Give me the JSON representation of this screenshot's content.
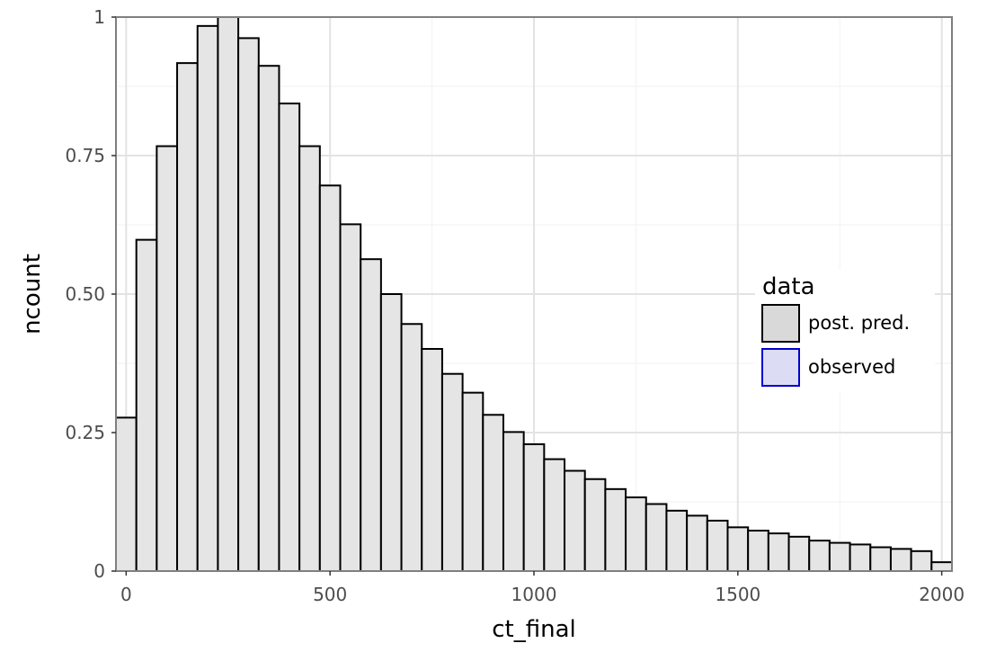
{
  "chart_data": {
    "type": "bar",
    "xlabel": "ct_final",
    "ylabel": "ncount",
    "xlim": [
      -25,
      2025
    ],
    "ylim": [
      0,
      1.0
    ],
    "x_ticks": [
      0,
      500,
      1000,
      1500,
      2000
    ],
    "x_tick_labels": [
      "0",
      "500",
      "1000",
      "1500",
      "2000"
    ],
    "y_ticks": [
      0,
      0.25,
      0.5,
      0.75,
      1
    ],
    "y_tick_labels": [
      "0",
      "0.25",
      "0.50",
      "0.75",
      "1"
    ],
    "grid": true,
    "bin_width": 50,
    "bins": [
      {
        "x0": -25,
        "x1": 25,
        "value": 0.277
      },
      {
        "x0": 25,
        "x1": 75,
        "value": 0.598
      },
      {
        "x0": 75,
        "x1": 125,
        "value": 0.767
      },
      {
        "x0": 125,
        "x1": 175,
        "value": 0.917
      },
      {
        "x0": 175,
        "x1": 225,
        "value": 0.984
      },
      {
        "x0": 225,
        "x1": 275,
        "value": 1.0
      },
      {
        "x0": 275,
        "x1": 325,
        "value": 0.962
      },
      {
        "x0": 325,
        "x1": 375,
        "value": 0.912
      },
      {
        "x0": 375,
        "x1": 425,
        "value": 0.844
      },
      {
        "x0": 425,
        "x1": 475,
        "value": 0.767
      },
      {
        "x0": 475,
        "x1": 525,
        "value": 0.696
      },
      {
        "x0": 525,
        "x1": 575,
        "value": 0.626
      },
      {
        "x0": 575,
        "x1": 625,
        "value": 0.563
      },
      {
        "x0": 625,
        "x1": 675,
        "value": 0.5
      },
      {
        "x0": 675,
        "x1": 725,
        "value": 0.446
      },
      {
        "x0": 725,
        "x1": 775,
        "value": 0.401
      },
      {
        "x0": 775,
        "x1": 825,
        "value": 0.356
      },
      {
        "x0": 825,
        "x1": 875,
        "value": 0.322
      },
      {
        "x0": 875,
        "x1": 925,
        "value": 0.282
      },
      {
        "x0": 925,
        "x1": 975,
        "value": 0.251
      },
      {
        "x0": 975,
        "x1": 1025,
        "value": 0.229
      },
      {
        "x0": 1025,
        "x1": 1075,
        "value": 0.202
      },
      {
        "x0": 1075,
        "x1": 1125,
        "value": 0.181
      },
      {
        "x0": 1125,
        "x1": 1175,
        "value": 0.166
      },
      {
        "x0": 1175,
        "x1": 1225,
        "value": 0.148
      },
      {
        "x0": 1225,
        "x1": 1275,
        "value": 0.133
      },
      {
        "x0": 1275,
        "x1": 1325,
        "value": 0.121
      },
      {
        "x0": 1325,
        "x1": 1375,
        "value": 0.109
      },
      {
        "x0": 1375,
        "x1": 1425,
        "value": 0.1
      },
      {
        "x0": 1425,
        "x1": 1475,
        "value": 0.091
      },
      {
        "x0": 1475,
        "x1": 1525,
        "value": 0.079
      },
      {
        "x0": 1525,
        "x1": 1575,
        "value": 0.073
      },
      {
        "x0": 1575,
        "x1": 1625,
        "value": 0.068
      },
      {
        "x0": 1625,
        "x1": 1675,
        "value": 0.062
      },
      {
        "x0": 1675,
        "x1": 1725,
        "value": 0.055
      },
      {
        "x0": 1725,
        "x1": 1775,
        "value": 0.051
      },
      {
        "x0": 1775,
        "x1": 1825,
        "value": 0.048
      },
      {
        "x0": 1825,
        "x1": 1875,
        "value": 0.043
      },
      {
        "x0": 1875,
        "x1": 1925,
        "value": 0.04
      },
      {
        "x0": 1925,
        "x1": 1975,
        "value": 0.036
      },
      {
        "x0": 1975,
        "x1": 2025,
        "value": 0.016
      }
    ],
    "series": [
      {
        "name": "post. pred.",
        "fill": "#e5e5e5",
        "stroke": "#000000"
      }
    ],
    "legend": {
      "title": "data",
      "position": "right-center inside",
      "entries": [
        {
          "label": "post. pred.",
          "fill": "#d9d9d9",
          "stroke": "#000000"
        },
        {
          "label": "observed",
          "fill": "#dcdcf5",
          "stroke": "#0000cc"
        }
      ]
    }
  }
}
